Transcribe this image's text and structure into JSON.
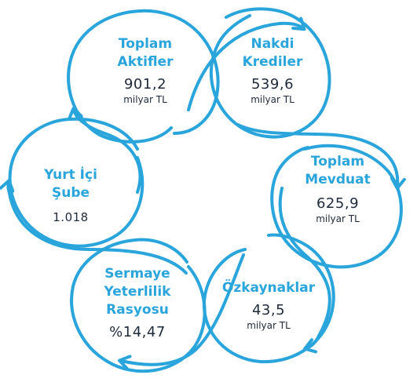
{
  "colors": {
    "accent": "#2aa5dc",
    "text": "#1f2a3a"
  },
  "nodes": [
    {
      "id": "toplam-aktifler",
      "title_lines": [
        "Toplam",
        "Aktifler"
      ],
      "value": "901,2",
      "unit": "milyar TL"
    },
    {
      "id": "nakdi-krediler",
      "title_lines": [
        "Nakdi",
        "Krediler"
      ],
      "value": "539,6",
      "unit": "milyar TL"
    },
    {
      "id": "toplam-mevduat",
      "title_lines": [
        "Toplam",
        "Mevduat"
      ],
      "value": "625,9",
      "unit": "milyar TL"
    },
    {
      "id": "ozkaynaklar",
      "title_lines": [
        "Özkaynaklar"
      ],
      "value": "43,5",
      "unit": "milyar TL"
    },
    {
      "id": "sermaye-yeterlilik",
      "title_lines": [
        "Sermaye",
        "Yeterlilik",
        "Rasyosu"
      ],
      "value": "%14,47",
      "unit": ""
    },
    {
      "id": "yurt-ici-sube",
      "title_lines": [
        "Yurt İçi",
        "Şube"
      ],
      "value": "1.018",
      "unit": ""
    }
  ]
}
